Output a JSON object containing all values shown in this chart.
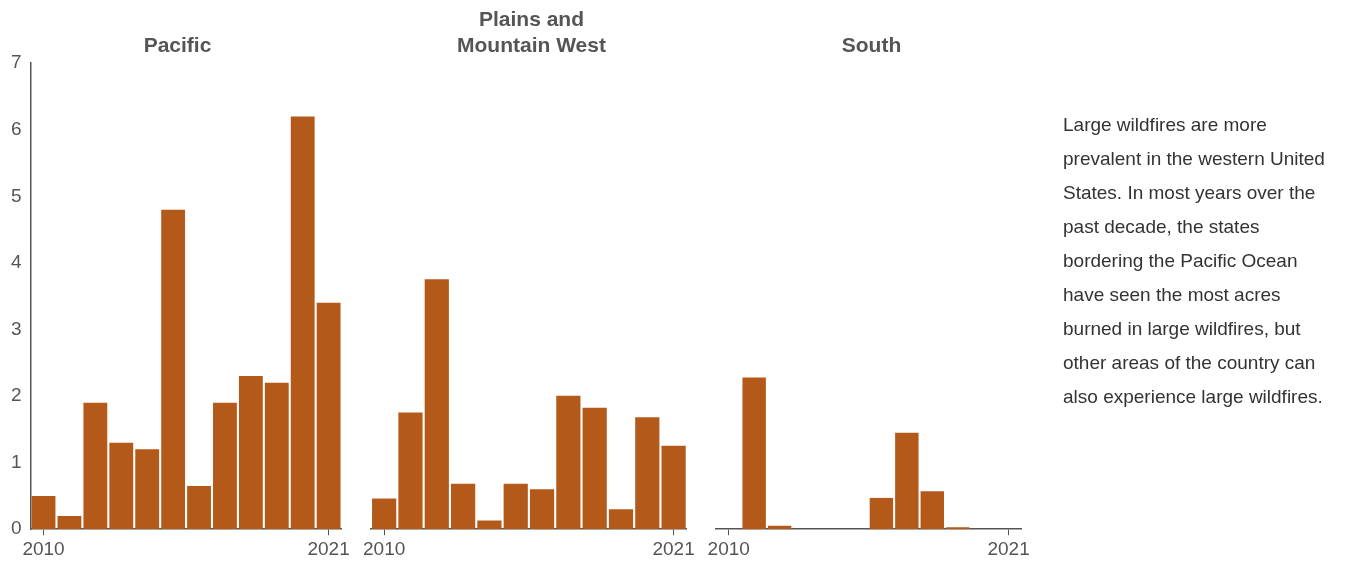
{
  "chart_data": [
    {
      "type": "bar",
      "title": "Pacific",
      "categories": [
        "2010",
        null,
        null,
        null,
        null,
        null,
        null,
        null,
        null,
        null,
        null,
        "2021"
      ],
      "values": [
        0.5,
        0.2,
        1.9,
        1.3,
        1.2,
        4.8,
        0.65,
        1.9,
        2.3,
        2.2,
        6.2,
        3.4
      ],
      "color": "#b35a1b",
      "ylim": [
        0,
        7
      ],
      "yticks": [
        0,
        1,
        2,
        3,
        4,
        5,
        6,
        7
      ],
      "grid": false
    },
    {
      "type": "bar",
      "title": "Plains and Mountain West",
      "categories": [
        "2010",
        null,
        null,
        null,
        null,
        null,
        null,
        null,
        null,
        null,
        null,
        "2021"
      ],
      "values": [
        0.46,
        1.75,
        3.75,
        0.68,
        0.13,
        0.68,
        0.6,
        2.0,
        1.82,
        0.3,
        1.68,
        1.25
      ],
      "color": "#b35a1b",
      "ylim": [
        0,
        7
      ],
      "yticks": [
        0,
        1,
        2,
        3,
        4,
        5,
        6,
        7
      ],
      "grid": false,
      "tick_labels": "x"
    },
    {
      "type": "bar",
      "title": "South",
      "categories": [
        "2010",
        null,
        null,
        null,
        null,
        null,
        null,
        null,
        null,
        null,
        null,
        "2021"
      ],
      "values": [
        0,
        2.28,
        0.05,
        0,
        0,
        0,
        0.47,
        1.45,
        0.57,
        0.03,
        0,
        0
      ],
      "color": "#b35a1b",
      "ylim": [
        0,
        7
      ],
      "yticks": [
        0,
        1,
        2,
        3,
        4,
        5,
        6,
        7
      ],
      "grid": false,
      "tick_labels": "x"
    },
    {
      "type": "other",
      "annotations": [
        "Large wildfires are more prevalent in the western United States. In most years over the past decade, the states bordering the Pacific Ocean have seen the most acres burned in large wildfires, but other areas of the country can also experience large wildfires."
      ]
    }
  ]
}
